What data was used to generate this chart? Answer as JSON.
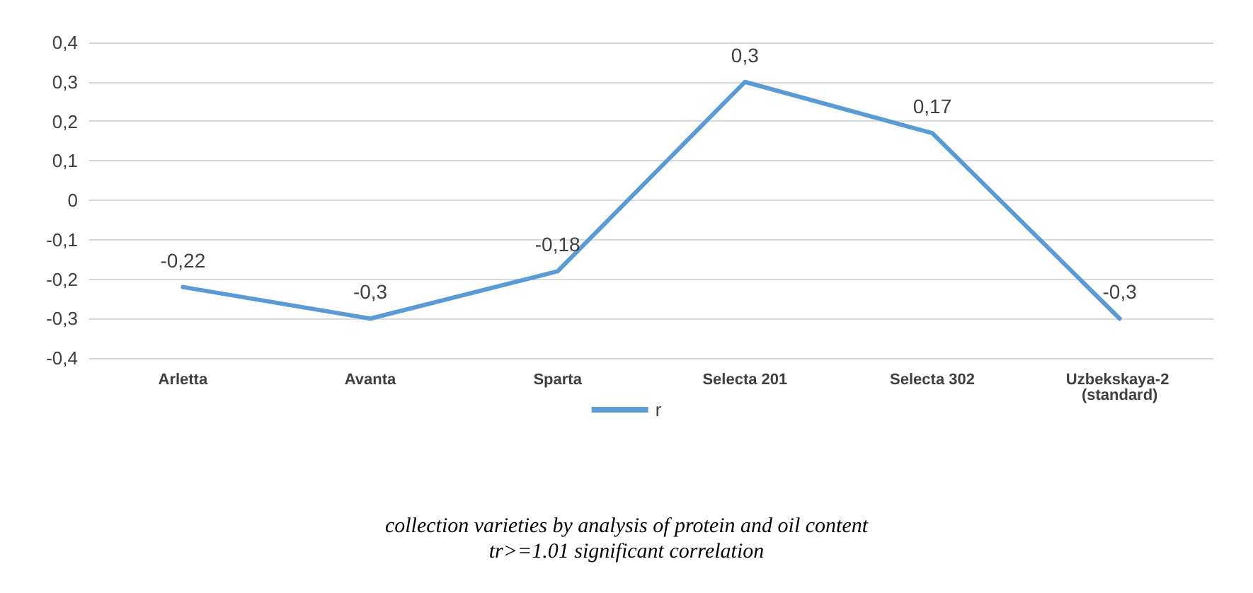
{
  "chart_data": {
    "type": "line",
    "categories": [
      "Arletta",
      "Avanta",
      "Sparta",
      "Selecta 201",
      "Selecta 302",
      "Uzbekskaya-2 (standard)"
    ],
    "series": [
      {
        "name": "r",
        "color": "#5b9bd5",
        "values": [
          -0.22,
          -0.3,
          -0.18,
          0.3,
          0.17,
          -0.3
        ],
        "value_labels": [
          "-0,22",
          "-0,3",
          "-0,18",
          "0,3",
          "0,17",
          "-0,3"
        ]
      }
    ],
    "ylim": [
      -0.4,
      0.4
    ],
    "yticks": [
      {
        "value": -0.4,
        "label": "-0,4"
      },
      {
        "value": -0.3,
        "label": "-0,3"
      },
      {
        "value": -0.2,
        "label": "-0,2"
      },
      {
        "value": -0.1,
        "label": "-0,1"
      },
      0,
      {
        "value": 0.1,
        "label": "0,1"
      },
      {
        "value": 0.2,
        "label": "0,2"
      },
      {
        "value": 0.3,
        "label": "0,3"
      },
      {
        "value": 0.4,
        "label": "0,4"
      }
    ],
    "grid": "y",
    "legend": "bottom",
    "marker": "none",
    "line_style": "solid",
    "annotations": [
      "collection varieties by analysis of protein and oil content",
      "tr>=1.01 significant correlation"
    ]
  }
}
